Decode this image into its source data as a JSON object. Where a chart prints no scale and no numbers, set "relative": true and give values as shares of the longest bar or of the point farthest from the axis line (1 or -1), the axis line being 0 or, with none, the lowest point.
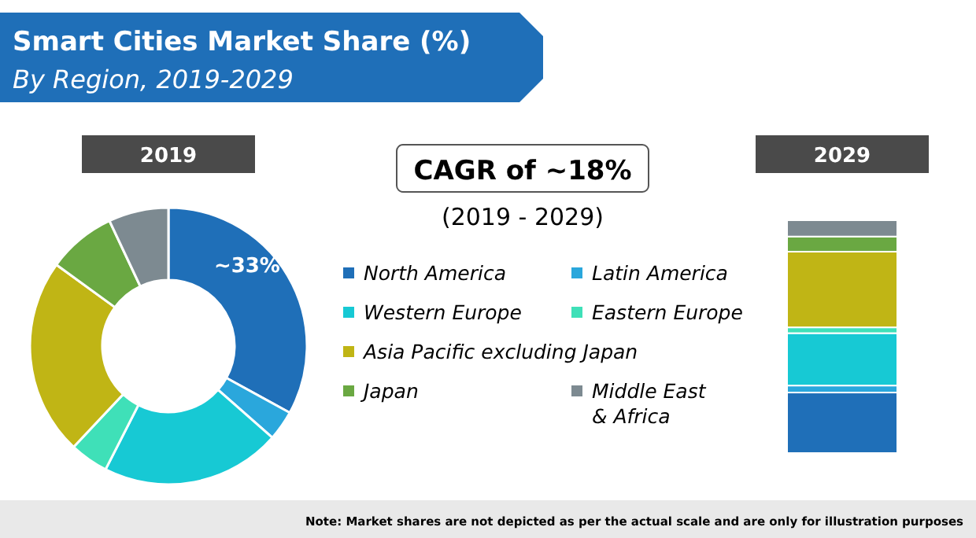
{
  "chart_data": [
    {
      "type": "donut",
      "title": "Smart Cities Market Share (%)",
      "subtitle": "By Region, 2019-2029",
      "categories": [
        "North America",
        "Latin America",
        "Western Europe",
        "Eastern Europe",
        "Asia Pacific excluding Japan",
        "Japan",
        "Middle East & Africa"
      ],
      "values": [
        33,
        3.5,
        21,
        4.5,
        23,
        8,
        7
      ],
      "colors": [
        "#1f6fb8",
        "#2aa7dc",
        "#17c9d4",
        "#3fe0b8",
        "#c0b515",
        "#6aa842",
        "#7d8a91"
      ],
      "value_labels": [
        "~33%",
        null,
        null,
        null,
        null,
        null,
        null
      ],
      "legend": "right",
      "annotations": [
        "2019",
        "CAGR of ~18%",
        "(2019 - 2029)",
        "Note: Market shares are not depicted as per the actual scale and are only for illustration purposes"
      ]
    },
    {
      "type": "bar",
      "stacked": true,
      "relative": true,
      "categories": [
        "2029"
      ],
      "series": [
        {
          "color": "#1f6fb8",
          "values": [
            0.26
          ]
        },
        {
          "color": "#2aa7dc",
          "values": [
            0.03
          ]
        },
        {
          "color": "#17c9d4",
          "values": [
            0.225
          ]
        },
        {
          "color": "#3fe0b8",
          "values": [
            0.025
          ]
        },
        {
          "color": "#c0b515",
          "values": [
            0.325
          ]
        },
        {
          "color": "#6aa842",
          "values": [
            0.065
          ]
        },
        {
          "color": "#7d8a91",
          "values": [
            0.07
          ]
        }
      ]
    }
  ]
}
